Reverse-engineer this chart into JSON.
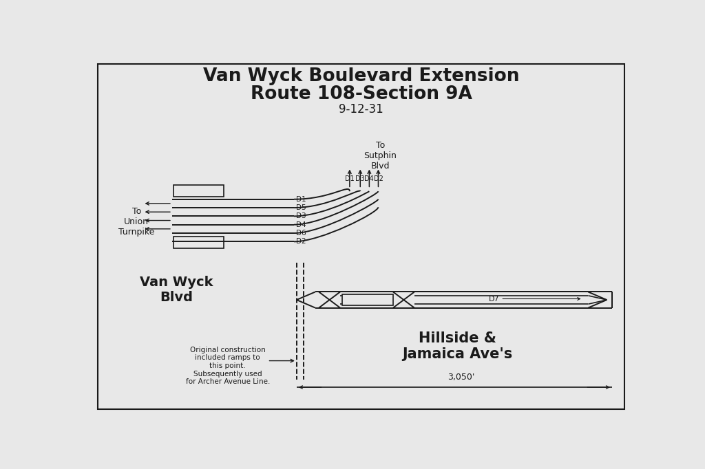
{
  "title_line1": "Van Wyck Boulevard Extension",
  "title_line2": "Route 108-Section 9A",
  "title_line3": "9-12-31",
  "bg_color": "#e8e8e8",
  "line_color": "#1a1a1a",
  "lw": 1.4,
  "border_color": "#555555"
}
